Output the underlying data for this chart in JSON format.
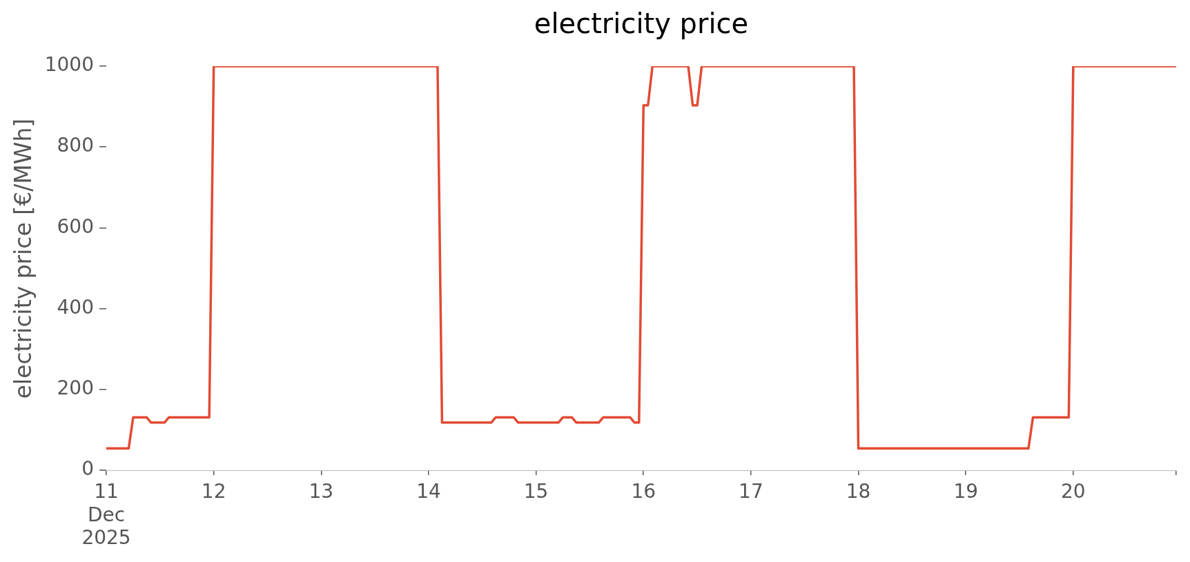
{
  "chart_data": {
    "type": "line",
    "title": "electricity price",
    "ylabel": "electricity price [€/MWh]",
    "x": [
      "2025-12-11T00:00",
      "2025-12-11T05:00",
      "2025-12-11T06:00",
      "2025-12-11T09:00",
      "2025-12-11T10:00",
      "2025-12-11T13:00",
      "2025-12-11T14:00",
      "2025-12-11T23:00",
      "2025-12-12T00:00",
      "2025-12-14T02:00",
      "2025-12-14T03:00",
      "2025-12-14T14:00",
      "2025-12-14T15:00",
      "2025-12-14T19:00",
      "2025-12-14T20:00",
      "2025-12-15T05:00",
      "2025-12-15T06:00",
      "2025-12-15T08:00",
      "2025-12-15T09:00",
      "2025-12-15T14:00",
      "2025-12-15T15:00",
      "2025-12-15T21:00",
      "2025-12-15T22:00",
      "2025-12-15T23:00",
      "2025-12-16T00:00",
      "2025-12-16T01:00",
      "2025-12-16T02:00",
      "2025-12-16T10:00",
      "2025-12-16T11:00",
      "2025-12-16T12:00",
      "2025-12-16T13:00",
      "2025-12-17T23:00",
      "2025-12-18T00:00",
      "2025-12-19T14:00",
      "2025-12-19T15:00",
      "2025-12-19T23:00",
      "2025-12-20T00:00",
      "2025-12-20T23:00"
    ],
    "series": [
      {
        "color": "#e24a33",
        "values": [
          54,
          54,
          131,
          131,
          118,
          118,
          131,
          131,
          1000,
          1000,
          118,
          118,
          131,
          131,
          118,
          118,
          131,
          131,
          118,
          118,
          131,
          131,
          118,
          118,
          903,
          903,
          1000,
          1000,
          903,
          903,
          1000,
          1000,
          54,
          54,
          131,
          131,
          1000,
          1000
        ]
      }
    ],
    "xlim": [
      "2025-12-11T00:00",
      "2025-12-20T23:00"
    ],
    "xticks": [
      {
        "value": "2025-12-11",
        "label": "11\nDec\n2025"
      },
      {
        "value": "2025-12-12",
        "label": "12"
      },
      {
        "value": "2025-12-13",
        "label": "13"
      },
      {
        "value": "2025-12-14",
        "label": "14"
      },
      {
        "value": "2025-12-15",
        "label": "15"
      },
      {
        "value": "2025-12-16",
        "label": "16"
      },
      {
        "value": "2025-12-17",
        "label": "17"
      },
      {
        "value": "2025-12-18",
        "label": "18"
      },
      {
        "value": "2025-12-19",
        "label": "19"
      },
      {
        "value": "2025-12-20",
        "label": "20"
      },
      {
        "value": "2025-12-20T23:00",
        "label": null
      }
    ],
    "ylim": [
      0,
      1000
    ],
    "yticks": [
      0,
      200,
      400,
      600,
      800,
      1000
    ]
  }
}
